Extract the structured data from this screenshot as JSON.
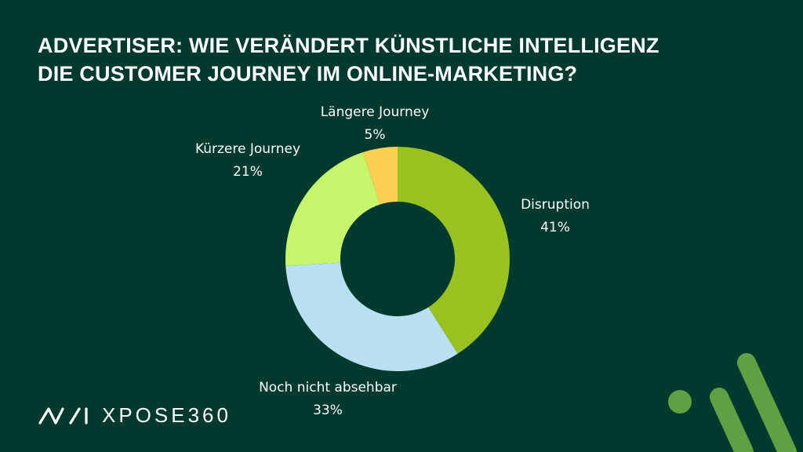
{
  "title_lines": [
    "ADVERTISER: WIE VERÄNDERT KÜNSTLICHE INTELLIGENZ",
    "DIE CUSTOMER JOURNEY IM ONLINE-MARKETING?"
  ],
  "chart_data": {
    "type": "pie",
    "donut": true,
    "title": "ADVERTISER: WIE VERÄNDERT KÜNSTLICHE INTELLIGENZ DIE CUSTOMER JOURNEY IM ONLINE-MARKETING?",
    "categories": [
      "Disruption",
      "Noch nicht absehbar",
      "Kürzere Journey",
      "Längere Journey"
    ],
    "values": [
      41,
      33,
      21,
      5
    ],
    "value_labels": [
      "41%",
      "33%",
      "21%",
      "5%"
    ],
    "colors": [
      "#98c21f",
      "#b8dff2",
      "#c5f56a",
      "#fdd052"
    ],
    "start": "12 o'clock, clockwise",
    "legend": "none (labels beside slices)"
  },
  "brand": {
    "logo_text": "XPOSE360",
    "colors": {
      "logo": "#ffffff",
      "accent": "#5fa043"
    }
  }
}
